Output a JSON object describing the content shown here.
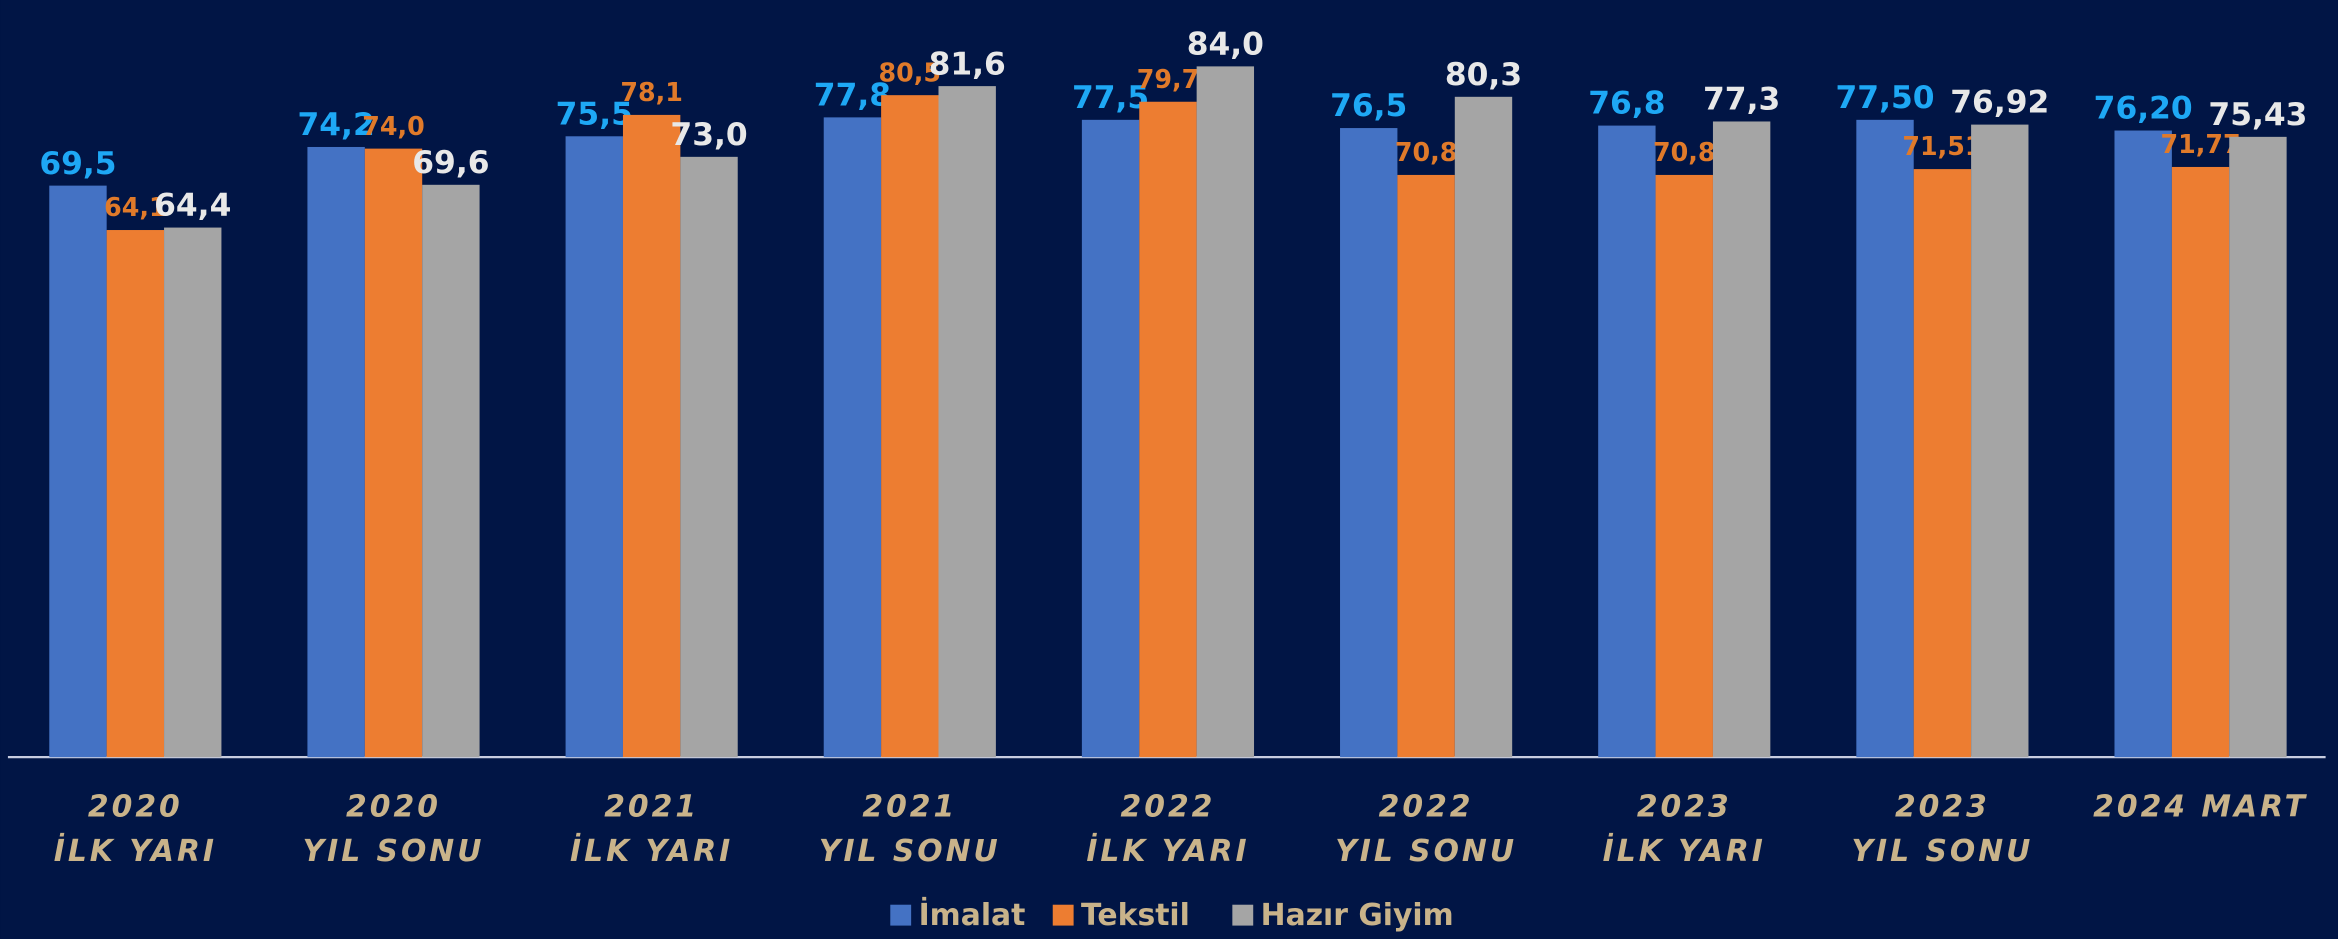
{
  "chart_data": {
    "type": "bar",
    "categories": [
      [
        "2020",
        "İLK YARI"
      ],
      [
        "2020",
        "YIL SONU"
      ],
      [
        "2021",
        "İLK YARI"
      ],
      [
        "2021",
        "YIL SONU"
      ],
      [
        "2022",
        "İLK YARI"
      ],
      [
        "2022",
        "YIL SONU"
      ],
      [
        "2023",
        "İLK YARI"
      ],
      [
        "2023",
        "YIL SONU"
      ],
      [
        "2024 MART"
      ]
    ],
    "series": [
      {
        "name": "İmalat",
        "color": "#4472c4",
        "label_color": "#1ea8f5",
        "values": [
          69.5,
          74.2,
          75.5,
          77.8,
          77.5,
          76.5,
          76.8,
          77.5,
          76.2
        ],
        "value_labels": [
          "69,5",
          "74,2",
          "75,5",
          "77,8",
          "77,5",
          "76,5",
          "76,8",
          "77,50",
          "76,20"
        ]
      },
      {
        "name": "Tekstil",
        "color": "#ed7d31",
        "label_color": "#e07a2a",
        "values": [
          64.1,
          74.0,
          78.1,
          80.5,
          79.7,
          70.8,
          70.8,
          71.51,
          71.77
        ],
        "value_labels": [
          "64,1",
          "74,0",
          "78,1",
          "80,5",
          "79,7",
          "70,8",
          "70,8",
          "71,51",
          "71,77"
        ]
      },
      {
        "name": "Hazır Giyim",
        "color": "#a5a5a5",
        "label_color": "#e8e8e8",
        "values": [
          64.4,
          69.6,
          73.0,
          81.6,
          84.0,
          80.3,
          77.3,
          76.92,
          75.43
        ],
        "value_labels": [
          "64,4",
          "69,6",
          "73,0",
          "81,6",
          "84,0",
          "80,3",
          "77,3",
          "76,92",
          "75,43"
        ]
      }
    ],
    "ylim": [
      0,
      92
    ],
    "grid": false,
    "legend": "bottom"
  }
}
